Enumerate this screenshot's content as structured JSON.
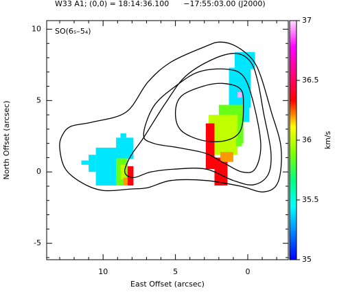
{
  "chart_data": {
    "type": "velocity-map",
    "title": "W33 A1; (0,0) = 18:14:36.100      −17:55:03.00 (J2000)",
    "annotation": "SO(6₅–5₄)",
    "xlabel": "East Offset (arcsec)",
    "ylabel": "North Offset (arcsec)",
    "zlabel": "km/s",
    "xlim": [
      13.9,
      -2.8
    ],
    "ylim": [
      -6.15,
      10.6
    ],
    "zlim": [
      35,
      37
    ],
    "xticks": [
      10,
      5,
      0
    ],
    "yticks": [
      -5,
      0,
      5,
      10
    ],
    "zticks": [
      35,
      35.5,
      36,
      36.5,
      37
    ],
    "xminorticks": [
      -2,
      -1,
      1,
      2,
      3,
      4,
      6,
      7,
      8,
      9,
      11,
      12,
      13
    ],
    "yminorticks": [
      -6,
      -4,
      -3,
      -2,
      -1,
      1,
      2,
      3,
      4,
      6,
      7,
      8,
      9
    ],
    "colormap": [
      "#0000ff",
      "#0080ff",
      "#00ffff",
      "#00ff80",
      "#80ff00",
      "#ffff00",
      "#ff0000",
      "#ff0080",
      "#ff00ff",
      "#ffe0ff"
    ],
    "contour_color": "#000000",
    "cells": [
      {
        "x": [
          10.5,
          9.0
        ],
        "y": [
          -0.95,
          1.7
        ],
        "v": 35.4
      },
      {
        "x": [
          11.0,
          10.5
        ],
        "y": [
          0.0,
          1.2
        ],
        "v": 35.4
      },
      {
        "x": [
          11.5,
          11.0
        ],
        "y": [
          0.5,
          0.8
        ],
        "v": 35.4
      },
      {
        "x": [
          9.1,
          7.9
        ],
        "y": [
          0.9,
          2.4
        ],
        "v": 35.4
      },
      {
        "x": [
          8.8,
          8.4
        ],
        "y": [
          2.4,
          2.7
        ],
        "v": 35.4
      },
      {
        "x": [
          9.1,
          8.3
        ],
        "y": [
          -0.95,
          0.95
        ],
        "v": 35.85
      },
      {
        "x": [
          8.8,
          8.4
        ],
        "y": [
          -0.5,
          0.5
        ],
        "v": 36.0
      },
      {
        "x": [
          8.3,
          7.9
        ],
        "y": [
          -0.95,
          0.4
        ],
        "v": 36.35
      },
      {
        "x": [
          8.6,
          8.3
        ],
        "y": [
          -0.95,
          -0.4
        ],
        "v": 36.2
      },
      {
        "x": [
          0.9,
          -0.5
        ],
        "y": [
          7.2,
          8.4
        ],
        "v": 35.4
      },
      {
        "x": [
          1.3,
          -0.2
        ],
        "y": [
          4.5,
          7.3
        ],
        "v": 35.4
      },
      {
        "x": [
          0.6,
          -0.1
        ],
        "y": [
          3.5,
          4.6
        ],
        "v": 35.4
      },
      {
        "x": [
          2.0,
          0.3
        ],
        "y": [
          2.0,
          4.7
        ],
        "v": 35.85
      },
      {
        "x": [
          2.7,
          0.7
        ],
        "y": [
          1.2,
          4.0
        ],
        "v": 36.0
      },
      {
        "x": [
          2.9,
          2.3
        ],
        "y": [
          0.2,
          3.4
        ],
        "v": 36.35
      },
      {
        "x": [
          2.3,
          1.4
        ],
        "y": [
          -0.95,
          1.0
        ],
        "v": 36.35
      },
      {
        "x": [
          1.9,
          1.0
        ],
        "y": [
          0.7,
          1.4
        ],
        "v": 36.2
      },
      {
        "x": [
          0.8,
          0.4
        ],
        "y": [
          1.8,
          2.4
        ],
        "v": 35.85
      },
      {
        "x": [
          0.7,
          0.4
        ],
        "y": [
          5.2,
          5.6
        ],
        "v": 36.95
      }
    ],
    "contours": [
      {
        "x": [
          13.0,
          12.8,
          12.2,
          10.7,
          8.4,
          6.9,
          5.3,
          2.9,
          1.9,
          0.8,
          -0.3,
          -0.9,
          -1.6,
          -2.3,
          -2.1,
          -1.1,
          0.5,
          2.9,
          5.3,
          6.9,
          8.1,
          10.0,
          11.4,
          12.6
        ],
        "y": [
          1.7,
          2.6,
          3.2,
          3.5,
          4.2,
          6.3,
          7.7,
          8.8,
          9.1,
          8.8,
          7.9,
          6.7,
          4.3,
          1.7,
          -0.7,
          -1.4,
          -1.0,
          -0.6,
          -0.6,
          -1.1,
          -1.2,
          -1.3,
          -0.8,
          0.2
        ]
      },
      {
        "x": [
          8.5,
          8.1,
          7.2,
          5.7,
          4.3,
          2.4,
          0.8,
          -0.2,
          -0.7,
          -1.1,
          -1.6,
          -1.4,
          -0.4,
          1.0,
          2.9,
          5.0,
          6.7,
          7.9
        ],
        "y": [
          0,
          1.1,
          2.4,
          4.8,
          6.7,
          7.9,
          8.3,
          7.7,
          6.3,
          4.1,
          1.4,
          -0.2,
          -0.9,
          -0.6,
          0.2,
          0.2,
          0,
          -0.4
        ]
      },
      {
        "x": [
          7.2,
          6.5,
          5.0,
          3.4,
          1.5,
          0.3,
          -0.4,
          -0.9,
          -0.5,
          0.4,
          1.6,
          2.9,
          4.8,
          6.5
        ],
        "y": [
          2.6,
          4.6,
          6.0,
          7.0,
          7.2,
          6.7,
          4.8,
          1.9,
          0.2,
          0,
          0.6,
          1.3,
          1.7,
          2.0
        ]
      },
      {
        "x": [
          5.0,
          4.6,
          3.1,
          1.7,
          0.5,
          0.3,
          0.5,
          1.5,
          3.1,
          4.6
        ],
        "y": [
          4.1,
          5.3,
          6.0,
          6.2,
          5.8,
          4.6,
          2.9,
          2.2,
          2.2,
          2.9
        ]
      }
    ]
  }
}
